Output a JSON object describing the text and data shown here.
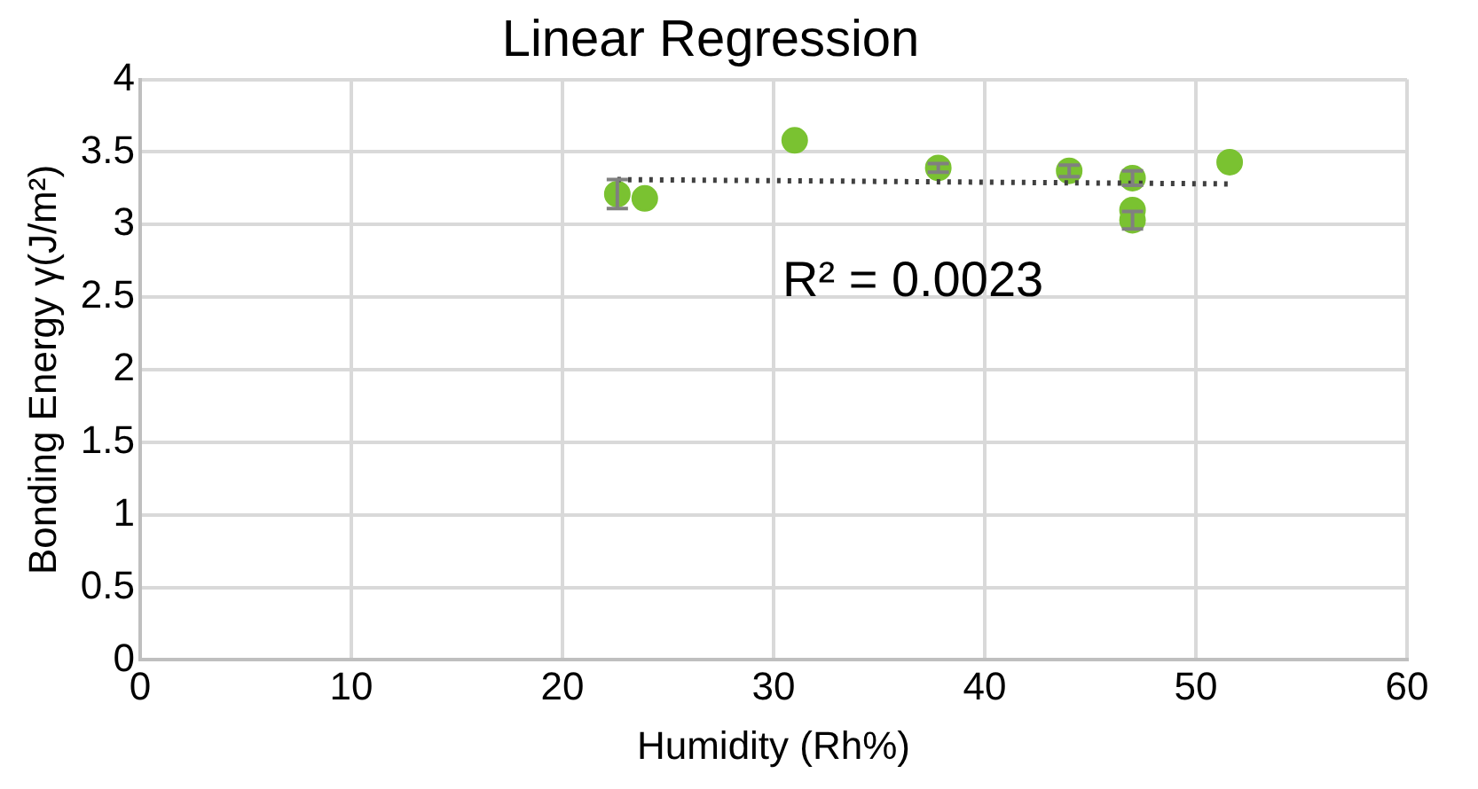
{
  "chart_data": {
    "type": "scatter",
    "title": "Linear Regression",
    "xlabel": "Humidity (Rh%)",
    "ylabel": "Bonding Energy γ(J/m²)",
    "series": [
      {
        "color": "#7ac231",
        "x": [
          22.6,
          23.9,
          31.0,
          37.8,
          44.0,
          47.0,
          47.0,
          47.0,
          51.6
        ],
        "values": [
          3.21,
          3.18,
          3.58,
          3.39,
          3.37,
          3.32,
          3.1,
          3.03,
          3.43
        ],
        "errors": [
          0.1,
          null,
          null,
          0.03,
          0.04,
          0.05,
          null,
          0.06,
          null
        ],
        "marker": "circle"
      },
      {
        "type": "line",
        "color": "#404040",
        "x": [
          22.6,
          51.6
        ],
        "values": [
          3.31,
          3.28
        ],
        "line_style": "dotted",
        "marker": "none"
      }
    ],
    "annotations": [
      "R² = 0.0023"
    ],
    "xlim": [
      0,
      60
    ],
    "xticks": [
      0,
      10,
      20,
      30,
      40,
      50,
      60
    ],
    "ylim": [
      0,
      4
    ],
    "yticks": [
      0,
      0.5,
      1,
      1.5,
      2,
      2.5,
      3,
      3.5,
      4
    ],
    "grid": true,
    "legend": false
  }
}
